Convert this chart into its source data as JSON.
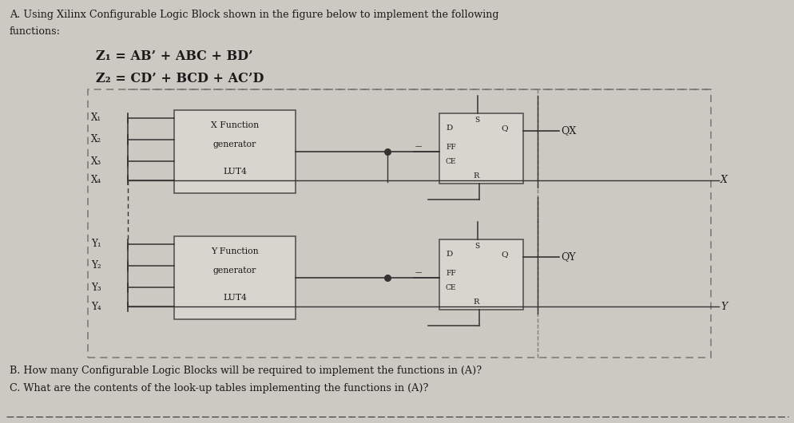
{
  "bg_color": "#ccc8c2",
  "text_color": "#1a1a1a",
  "title_line1": "A. Using Xilinx Configurable Logic Block shown in the figure below to implement the following",
  "title_line2": "functions:",
  "eq1": "Z₁ = AB’ + ABC + BD’",
  "eq2": "Z₂ = CD’ + BCD + AC’D",
  "bottom_line1": "B. How many Configurable Logic Blocks will be required to implement the functions in (A)?",
  "bottom_line2": "C. What are the contents of the look-up tables implementing the functions in (A)?",
  "x_inputs": [
    "X₁",
    "X₂",
    "X₃",
    "X₄"
  ],
  "y_inputs": [
    "Y₁",
    "Y₂",
    "Y₃",
    "Y₄"
  ],
  "output_x": "QX",
  "output_y": "QY",
  "label_x": "X",
  "label_y": "Y",
  "dashed_box_color": "#777777",
  "block_fill": "#d8d4ce",
  "block_edge": "#555555",
  "wire_color": "#333333"
}
